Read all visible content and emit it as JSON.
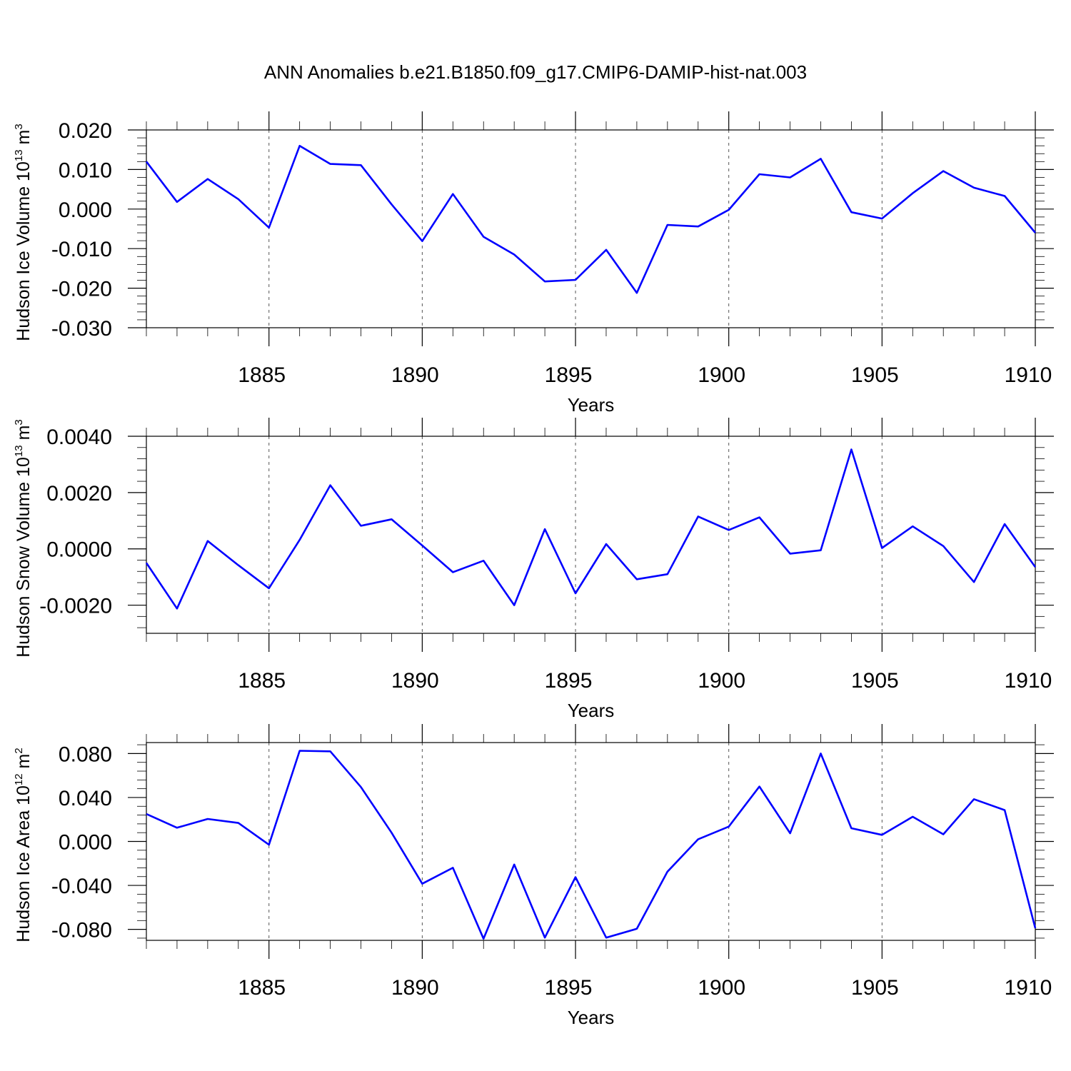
{
  "title": "ANN Anomalies b.e21.B1850.f09_g17.CMIP6-DAMIP-hist-nat.003",
  "chart_data": [
    {
      "type": "line",
      "name": "ice-volume",
      "title": "",
      "xlabel": "Years",
      "ylabel": "Hudson Ice Volume 10",
      "ylabel_sup": "13",
      "ylabel_unit": " m",
      "ylabel_unit_sup": "3",
      "xlim": [
        1881,
        1910
      ],
      "ylim": [
        -0.03,
        0.02
      ],
      "xticks": [
        1885,
        1890,
        1895,
        1900,
        1905,
        1910
      ],
      "xtick_labels": [
        "1885",
        "1890",
        "1895",
        "1900",
        "1905",
        "1910"
      ],
      "yticks": [
        0.02,
        0.01,
        0.0,
        -0.01,
        -0.02,
        -0.03
      ],
      "ytick_labels": [
        "0.020",
        "0.010",
        "0.000",
        "-0.010",
        "-0.020",
        "-0.030"
      ],
      "yminor_step": 0.002,
      "color": "#0000ff",
      "x": [
        1881,
        1882,
        1883,
        1884,
        1885,
        1886,
        1887,
        1888,
        1889,
        1890,
        1891,
        1892,
        1893,
        1894,
        1895,
        1896,
        1897,
        1898,
        1899,
        1900,
        1901,
        1902,
        1903,
        1904,
        1905,
        1906,
        1907,
        1908,
        1909,
        1910
      ],
      "values": [
        0.012,
        0.0018,
        0.0076,
        0.0025,
        -0.0047,
        0.016,
        0.0114,
        0.0111,
        0.0012,
        -0.0081,
        0.0038,
        -0.007,
        -0.0115,
        -0.0183,
        -0.0179,
        -0.0103,
        -0.0212,
        -0.004,
        -0.0044,
        -0.0002,
        0.0088,
        0.008,
        0.0127,
        -0.0008,
        -0.0024,
        0.004,
        0.0096,
        0.0054,
        0.0033,
        -0.006
      ]
    },
    {
      "type": "line",
      "name": "snow-volume",
      "title": "",
      "xlabel": "Years",
      "ylabel": "Hudson Snow Volume 10",
      "ylabel_sup": "13",
      "ylabel_unit": " m",
      "ylabel_unit_sup": "3",
      "xlim": [
        1881,
        1910
      ],
      "ylim": [
        -0.003,
        0.004
      ],
      "xticks": [
        1885,
        1890,
        1895,
        1900,
        1905,
        1910
      ],
      "xtick_labels": [
        "1885",
        "1890",
        "1895",
        "1900",
        "1905",
        "1910"
      ],
      "yticks": [
        0.004,
        0.002,
        0.0,
        -0.002
      ],
      "ytick_labels": [
        "0.0040",
        "0.0020",
        "0.0000",
        "-0.0020"
      ],
      "yminor_step": 0.0004,
      "color": "#0000ff",
      "x": [
        1881,
        1882,
        1883,
        1884,
        1885,
        1886,
        1887,
        1888,
        1889,
        1890,
        1891,
        1892,
        1893,
        1894,
        1895,
        1896,
        1897,
        1898,
        1899,
        1900,
        1901,
        1902,
        1903,
        1904,
        1905,
        1906,
        1907,
        1908,
        1909,
        1910
      ],
      "values": [
        -0.0005,
        -0.00212,
        0.00028,
        -0.00058,
        -0.0014,
        0.00032,
        0.00226,
        0.00082,
        0.00105,
        0.00012,
        -0.00083,
        -0.00042,
        -0.002,
        0.0007,
        -0.00158,
        0.00017,
        -0.00108,
        -0.0009,
        0.00115,
        0.00067,
        0.00112,
        -0.00017,
        -5e-05,
        0.00353,
        3e-05,
        0.0008,
        0.0001,
        -0.00118,
        0.00088,
        -0.00065
      ]
    },
    {
      "type": "line",
      "name": "ice-area",
      "title": "",
      "xlabel": "Years",
      "ylabel": "Hudson Ice Area 10",
      "ylabel_sup": "12",
      "ylabel_unit": " m",
      "ylabel_unit_sup": "2",
      "xlim": [
        1881,
        1910
      ],
      "ylim": [
        -0.09,
        0.09
      ],
      "xticks": [
        1885,
        1890,
        1895,
        1900,
        1905,
        1910
      ],
      "xtick_labels": [
        "1885",
        "1890",
        "1895",
        "1900",
        "1905",
        "1910"
      ],
      "yticks": [
        0.08,
        0.04,
        0.0,
        -0.04,
        -0.08
      ],
      "ytick_labels": [
        "0.080",
        "0.040",
        "0.000",
        "-0.040",
        "-0.080"
      ],
      "yminor_step": 0.008,
      "color": "#0000ff",
      "x": [
        1881,
        1882,
        1883,
        1884,
        1885,
        1886,
        1887,
        1888,
        1889,
        1890,
        1891,
        1892,
        1893,
        1894,
        1895,
        1896,
        1897,
        1898,
        1899,
        1900,
        1901,
        1902,
        1903,
        1904,
        1905,
        1906,
        1907,
        1908,
        1909,
        1910
      ],
      "values": [
        0.025,
        0.0125,
        0.0205,
        0.0168,
        -0.003,
        0.0825,
        0.082,
        0.0495,
        0.008,
        -0.0385,
        -0.024,
        -0.0885,
        -0.021,
        -0.0875,
        -0.0325,
        -0.0875,
        -0.0795,
        -0.0275,
        0.002,
        0.0135,
        0.05,
        0.0075,
        0.08,
        0.012,
        0.006,
        0.0225,
        0.0065,
        0.0385,
        0.0285,
        -0.079
      ]
    }
  ]
}
